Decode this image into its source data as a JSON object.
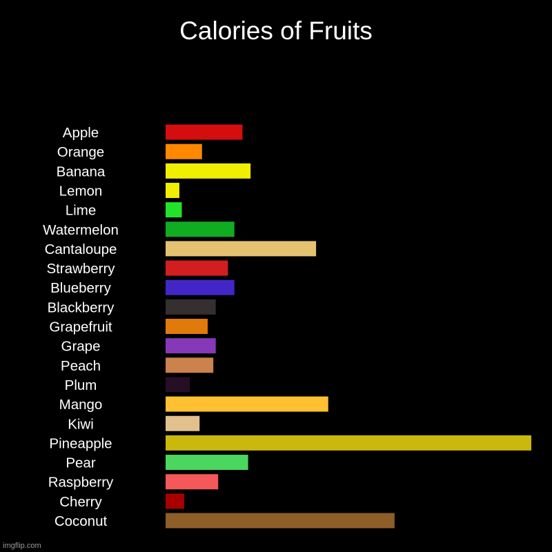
{
  "watermark": "imgflip.com",
  "chart_data": {
    "type": "bar",
    "orientation": "horizontal",
    "title": "Calories of Fruits",
    "xlabel": "",
    "ylabel": "",
    "grid": false,
    "legend": "none",
    "categories": [
      "Apple",
      "Orange",
      "Banana",
      "Lemon",
      "Lime",
      "Watermelon",
      "Cantaloupe",
      "Strawberry",
      "Blueberry",
      "Blackberry",
      "Grapefruit",
      "Grape",
      "Peach",
      "Plum",
      "Mango",
      "Kiwi",
      "Pineapple",
      "Pear",
      "Raspberry",
      "Cherry",
      "Coconut"
    ],
    "values": [
      95,
      45,
      105,
      17,
      20,
      85,
      186,
      77,
      85,
      62,
      52,
      62,
      59,
      30,
      201,
      42,
      452,
      102,
      65,
      23,
      283
    ],
    "colors": [
      "#d40e0e",
      "#ff8800",
      "#f0ef00",
      "#f0ef00",
      "#22e32a",
      "#10ac22",
      "#e4c270",
      "#d21e1e",
      "#4226c8",
      "#352f2f",
      "#e07a0b",
      "#8539b8",
      "#cb824c",
      "#260e25",
      "#ffc132",
      "#e3c18d",
      "#cab80c",
      "#4ad65f",
      "#f55858",
      "#a80000",
      "#8d5e28"
    ],
    "xlim": [
      0,
      452
    ]
  }
}
